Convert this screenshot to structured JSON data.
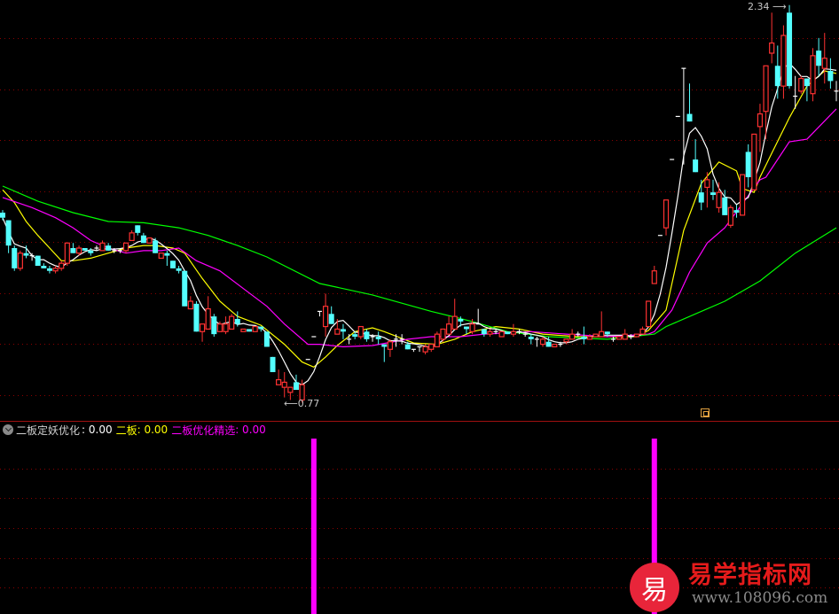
{
  "chart_data": {
    "type": "candlestick",
    "price_range": [
      0.77,
      2.34
    ],
    "grid": true,
    "annotations": {
      "high_label": "2.34",
      "low_label": "0.77"
    },
    "colors": {
      "up": "#ff3232",
      "down": "#54ffff",
      "flat": "#ffffff",
      "ma_short": "#ffffff",
      "ma_mid": "#ffff00",
      "ma_long": "#ff00ff",
      "ma_longest": "#00ff00",
      "signal": "#ff00ff",
      "grid": "#8b0000"
    },
    "candles_ohlc": [
      [
        1.52,
        1.53,
        1.49,
        1.5
      ],
      [
        1.49,
        1.49,
        1.36,
        1.39
      ],
      [
        1.38,
        1.39,
        1.29,
        1.3
      ],
      [
        1.3,
        1.37,
        1.29,
        1.36
      ],
      [
        1.36,
        1.39,
        1.34,
        1.35
      ],
      [
        1.35,
        1.36,
        1.33,
        1.35
      ],
      [
        1.35,
        1.35,
        1.31,
        1.31
      ],
      [
        1.31,
        1.32,
        1.3,
        1.3
      ],
      [
        1.3,
        1.31,
        1.28,
        1.29
      ],
      [
        1.29,
        1.31,
        1.28,
        1.3
      ],
      [
        1.3,
        1.33,
        1.29,
        1.32
      ],
      [
        1.32,
        1.4,
        1.31,
        1.4
      ],
      [
        1.38,
        1.4,
        1.36,
        1.36
      ],
      [
        1.36,
        1.39,
        1.35,
        1.38
      ],
      [
        1.38,
        1.38,
        1.37,
        1.37
      ],
      [
        1.37,
        1.38,
        1.35,
        1.36
      ],
      [
        1.38,
        1.39,
        1.37,
        1.38
      ],
      [
        1.37,
        1.41,
        1.37,
        1.4
      ],
      [
        1.39,
        1.4,
        1.37,
        1.37
      ],
      [
        1.37,
        1.38,
        1.36,
        1.37
      ],
      [
        1.37,
        1.38,
        1.36,
        1.37
      ],
      [
        1.37,
        1.4,
        1.36,
        1.4
      ],
      [
        1.41,
        1.45,
        1.41,
        1.44
      ],
      [
        1.47,
        1.47,
        1.43,
        1.44
      ],
      [
        1.43,
        1.44,
        1.4,
        1.4
      ],
      [
        1.4,
        1.42,
        1.4,
        1.42
      ],
      [
        1.41,
        1.42,
        1.36,
        1.36
      ],
      [
        1.34,
        1.36,
        1.34,
        1.36
      ],
      [
        1.36,
        1.37,
        1.31,
        1.35
      ],
      [
        1.33,
        1.33,
        1.3,
        1.3
      ],
      [
        1.3,
        1.31,
        1.28,
        1.29
      ],
      [
        1.29,
        1.29,
        1.15,
        1.15
      ],
      [
        1.14,
        1.19,
        1.14,
        1.17
      ],
      [
        1.16,
        1.17,
        1.05,
        1.05
      ],
      [
        1.05,
        1.08,
        1.01,
        1.08
      ],
      [
        1.06,
        1.19,
        1.06,
        1.14
      ],
      [
        1.11,
        1.12,
        1.03,
        1.04
      ],
      [
        1.05,
        1.09,
        1.05,
        1.08
      ],
      [
        1.05,
        1.11,
        1.04,
        1.08
      ],
      [
        1.06,
        1.12,
        1.06,
        1.11
      ],
      [
        1.1,
        1.13,
        1.07,
        1.08
      ],
      [
        1.05,
        1.06,
        1.05,
        1.06
      ],
      [
        1.06,
        1.06,
        1.05,
        1.05
      ],
      [
        1.05,
        1.07,
        1.05,
        1.07
      ],
      [
        1.07,
        1.07,
        1.05,
        1.06
      ],
      [
        1.05,
        1.05,
        0.99,
        0.99
      ],
      [
        0.95,
        0.95,
        0.89,
        0.89
      ],
      [
        0.84,
        0.9,
        0.84,
        0.86
      ],
      [
        0.83,
        0.89,
        0.79,
        0.85
      ],
      [
        0.81,
        0.83,
        0.78,
        0.83
      ],
      [
        0.85,
        0.88,
        0.82,
        0.82
      ],
      [
        0.78,
        0.86,
        0.77,
        0.84
      ],
      [
        0.94,
        0.94,
        0.94,
        0.94
      ],
      [
        1.03,
        1.03,
        1.03,
        1.03
      ],
      [
        1.13,
        1.13,
        1.11,
        1.13
      ],
      [
        1.07,
        1.2,
        1.03,
        1.15
      ],
      [
        1.12,
        1.15,
        1.08,
        1.08
      ],
      [
        1.04,
        1.1,
        1.04,
        1.06
      ],
      [
        1.06,
        1.08,
        1.02,
        1.05
      ],
      [
        1.02,
        1.04,
        1.0,
        1.02
      ],
      [
        1.04,
        1.05,
        1.02,
        1.03
      ],
      [
        1.03,
        1.07,
        1.02,
        1.07
      ],
      [
        1.05,
        1.06,
        1.01,
        1.02
      ],
      [
        1.03,
        1.04,
        1.01,
        1.03
      ],
      [
        1.03,
        1.05,
        1.0,
        1.02
      ],
      [
        1.0,
        1.0,
        0.93,
        0.99
      ],
      [
        0.98,
        1.02,
        0.95,
        1.01
      ],
      [
        1.02,
        1.04,
        0.99,
        1.02
      ],
      [
        1.02,
        1.04,
        1.0,
        1.02
      ],
      [
        1.0,
        1.01,
        0.98,
        0.98
      ],
      [
        0.98,
        0.98,
        0.97,
        0.98
      ],
      [
        0.99,
        0.99,
        0.97,
        0.99
      ],
      [
        0.97,
        1.0,
        0.96,
        0.99
      ],
      [
        0.98,
        1.0,
        0.97,
        1.0
      ],
      [
        0.99,
        1.05,
        0.99,
        1.04
      ],
      [
        1.02,
        1.06,
        1.01,
        1.06
      ],
      [
        1.04,
        1.11,
        1.04,
        1.08
      ],
      [
        1.06,
        1.18,
        1.06,
        1.11
      ],
      [
        1.1,
        1.11,
        1.07,
        1.09
      ],
      [
        1.07,
        1.07,
        1.04,
        1.06
      ],
      [
        1.05,
        1.1,
        1.04,
        1.08
      ],
      [
        1.08,
        1.14,
        1.08,
        1.08
      ],
      [
        1.06,
        1.06,
        1.03,
        1.04
      ],
      [
        1.04,
        1.06,
        1.03,
        1.05
      ],
      [
        1.05,
        1.06,
        1.04,
        1.05
      ],
      [
        1.03,
        1.05,
        1.03,
        1.05
      ],
      [
        1.05,
        1.05,
        1.04,
        1.04
      ],
      [
        1.04,
        1.08,
        1.03,
        1.05
      ],
      [
        1.05,
        1.06,
        1.04,
        1.05
      ],
      [
        1.04,
        1.05,
        1.03,
        1.04
      ],
      [
        1.03,
        1.04,
        1.0,
        1.02
      ],
      [
        1.02,
        1.03,
        0.99,
        1.02
      ],
      [
        1.0,
        1.03,
        0.99,
        1.02
      ],
      [
        1.01,
        1.03,
        0.99,
        0.99
      ],
      [
        0.99,
        1.0,
        0.99,
        1.0
      ],
      [
        1.0,
        1.01,
        0.99,
        1.0
      ],
      [
        1.01,
        1.02,
        1.0,
        1.02
      ],
      [
        1.02,
        1.06,
        1.02,
        1.04
      ],
      [
        1.04,
        1.05,
        1.03,
        1.04
      ],
      [
        1.03,
        1.07,
        1.0,
        1.02
      ],
      [
        1.02,
        1.04,
        1.02,
        1.03
      ],
      [
        1.03,
        1.04,
        1.03,
        1.04
      ],
      [
        1.03,
        1.13,
        1.03,
        1.05
      ],
      [
        1.05,
        1.05,
        1.03,
        1.04
      ],
      [
        1.02,
        1.03,
        1.01,
        1.02
      ],
      [
        1.02,
        1.03,
        1.02,
        1.03
      ],
      [
        1.02,
        1.06,
        1.02,
        1.04
      ],
      [
        1.03,
        1.04,
        1.02,
        1.03
      ],
      [
        1.03,
        1.04,
        1.03,
        1.04
      ],
      [
        1.04,
        1.07,
        1.04,
        1.06
      ],
      [
        1.07,
        1.17,
        1.07,
        1.17
      ],
      [
        1.24,
        1.31,
        1.24,
        1.29
      ],
      [
        1.43,
        1.43,
        1.43,
        1.43
      ],
      [
        1.46,
        1.57,
        1.43,
        1.57
      ],
      [
        1.73,
        1.73,
        1.73,
        1.73
      ],
      [
        1.9,
        1.9,
        1.9,
        1.9
      ],
      [
        2.09,
        2.09,
        1.71,
        2.09
      ],
      [
        1.91,
        2.03,
        1.88,
        1.88
      ],
      [
        1.73,
        1.81,
        1.68,
        1.68
      ],
      [
        1.6,
        1.65,
        1.53,
        1.56
      ],
      [
        1.62,
        1.68,
        1.54,
        1.65
      ],
      [
        1.6,
        1.65,
        1.57,
        1.59
      ],
      [
        1.54,
        1.64,
        1.52,
        1.6
      ],
      [
        1.58,
        1.61,
        1.51,
        1.51
      ],
      [
        1.47,
        1.55,
        1.46,
        1.54
      ],
      [
        1.53,
        1.55,
        1.5,
        1.52
      ],
      [
        1.51,
        1.67,
        1.51,
        1.67
      ],
      [
        1.76,
        1.79,
        1.62,
        1.66
      ],
      [
        1.61,
        1.83,
        1.61,
        1.83
      ],
      [
        1.86,
        1.95,
        1.76,
        1.91
      ],
      [
        1.92,
        2.1,
        1.81,
        2.1
      ],
      [
        2.15,
        2.31,
        2.11,
        2.19
      ],
      [
        2.1,
        2.18,
        1.97,
        2.02
      ],
      [
        2.02,
        2.26,
        1.97,
        2.22
      ],
      [
        2.31,
        2.34,
        2.01,
        2.02
      ],
      [
        1.98,
        2.06,
        1.93,
        1.98
      ],
      [
        2.0,
        2.06,
        1.99,
        2.05
      ],
      [
        2.05,
        2.05,
        1.96,
        2.02
      ],
      [
        1.99,
        2.17,
        1.96,
        2.14
      ],
      [
        2.16,
        2.21,
        2.06,
        2.1
      ],
      [
        2.09,
        2.23,
        2.03,
        2.13
      ],
      [
        2.08,
        2.13,
        2.01,
        2.04
      ],
      [
        2.0,
        2.04,
        1.96,
        2.0
      ]
    ],
    "moving_averages": [
      {
        "color_key": "ma_mid",
        "points": [
          [
            0,
            1.61
          ],
          [
            2,
            1.56
          ],
          [
            4,
            1.485
          ],
          [
            6,
            1.43
          ],
          [
            8,
            1.38
          ],
          [
            10,
            1.33
          ],
          [
            12,
            1.33
          ],
          [
            15,
            1.34
          ],
          [
            18,
            1.36
          ],
          [
            21,
            1.38
          ],
          [
            24,
            1.39
          ],
          [
            26,
            1.39
          ],
          [
            29,
            1.38
          ],
          [
            31,
            1.36
          ],
          [
            34,
            1.26
          ],
          [
            37,
            1.17
          ],
          [
            40,
            1.11
          ],
          [
            44,
            1.075
          ],
          [
            48,
            1.0
          ],
          [
            51,
            0.93
          ],
          [
            53,
            0.91
          ],
          [
            55,
            0.95
          ],
          [
            57,
            0.995
          ],
          [
            60,
            1.05
          ],
          [
            63,
            1.065
          ],
          [
            65,
            1.05
          ],
          [
            70,
            1.005
          ],
          [
            74,
            1.0
          ],
          [
            77,
            1.02
          ],
          [
            80,
            1.05
          ],
          [
            84,
            1.07
          ],
          [
            88,
            1.06
          ],
          [
            92,
            1.04
          ],
          [
            98,
            1.03
          ],
          [
            103,
            1.03
          ],
          [
            108,
            1.03
          ],
          [
            110,
            1.055
          ],
          [
            113,
            1.135
          ],
          [
            116,
            1.45
          ],
          [
            119,
            1.635
          ],
          [
            122,
            1.72
          ],
          [
            125,
            1.685
          ],
          [
            126,
            1.615
          ],
          [
            128,
            1.6
          ],
          [
            129,
            1.66
          ],
          [
            131,
            1.755
          ],
          [
            134,
            1.895
          ],
          [
            137,
            2.02
          ],
          [
            140,
            2.08
          ],
          [
            142,
            2.07
          ]
        ]
      },
      {
        "color_key": "ma_long",
        "points": [
          [
            0,
            1.58
          ],
          [
            5,
            1.54
          ],
          [
            9,
            1.5
          ],
          [
            12,
            1.46
          ],
          [
            15,
            1.41
          ],
          [
            18,
            1.38
          ],
          [
            21,
            1.36
          ],
          [
            24,
            1.37
          ],
          [
            27,
            1.37
          ],
          [
            30,
            1.38
          ],
          [
            33,
            1.33
          ],
          [
            37,
            1.29
          ],
          [
            41,
            1.22
          ],
          [
            45,
            1.15
          ],
          [
            48,
            1.08
          ],
          [
            52,
            1.0
          ],
          [
            54,
            1.0
          ],
          [
            58,
            0.99
          ],
          [
            63,
            0.995
          ],
          [
            69,
            1.02
          ],
          [
            73,
            1.03
          ],
          [
            78,
            1.03
          ],
          [
            82,
            1.04
          ],
          [
            90,
            1.05
          ],
          [
            96,
            1.04
          ],
          [
            103,
            1.03
          ],
          [
            110,
            1.04
          ],
          [
            111,
            1.05
          ],
          [
            114,
            1.135
          ],
          [
            117,
            1.285
          ],
          [
            120,
            1.4
          ],
          [
            123,
            1.46
          ],
          [
            126,
            1.555
          ],
          [
            129,
            1.65
          ],
          [
            130,
            1.66
          ],
          [
            134,
            1.8
          ],
          [
            137,
            1.81
          ],
          [
            142,
            1.93
          ]
        ]
      },
      {
        "color_key": "ma_longest",
        "points": [
          [
            0,
            1.625
          ],
          [
            6,
            1.565
          ],
          [
            12,
            1.52
          ],
          [
            18,
            1.485
          ],
          [
            24,
            1.48
          ],
          [
            30,
            1.46
          ],
          [
            35,
            1.43
          ],
          [
            40,
            1.39
          ],
          [
            45,
            1.345
          ],
          [
            54,
            1.24
          ],
          [
            63,
            1.195
          ],
          [
            73,
            1.13
          ],
          [
            80,
            1.09
          ],
          [
            86,
            1.05
          ],
          [
            93,
            1.03
          ],
          [
            103,
            1.02
          ],
          [
            111,
            1.04
          ],
          [
            113,
            1.07
          ],
          [
            118,
            1.12
          ],
          [
            123,
            1.17
          ],
          [
            129,
            1.25
          ],
          [
            135,
            1.36
          ],
          [
            142,
            1.46
          ]
        ]
      }
    ],
    "indicator": {
      "signal_candles": [
        53,
        111
      ]
    }
  },
  "indicator_header": {
    "name": "二板定妖优化",
    "name_value": ": 0.00",
    "line1_label": "二板",
    "line1_value": ": 0.00",
    "line2_label": "二板优化精选",
    "line2_value": ": 0.00"
  },
  "watermark": {
    "icon_char": "易",
    "title": "易学指标网",
    "url": "www.108096.com"
  }
}
